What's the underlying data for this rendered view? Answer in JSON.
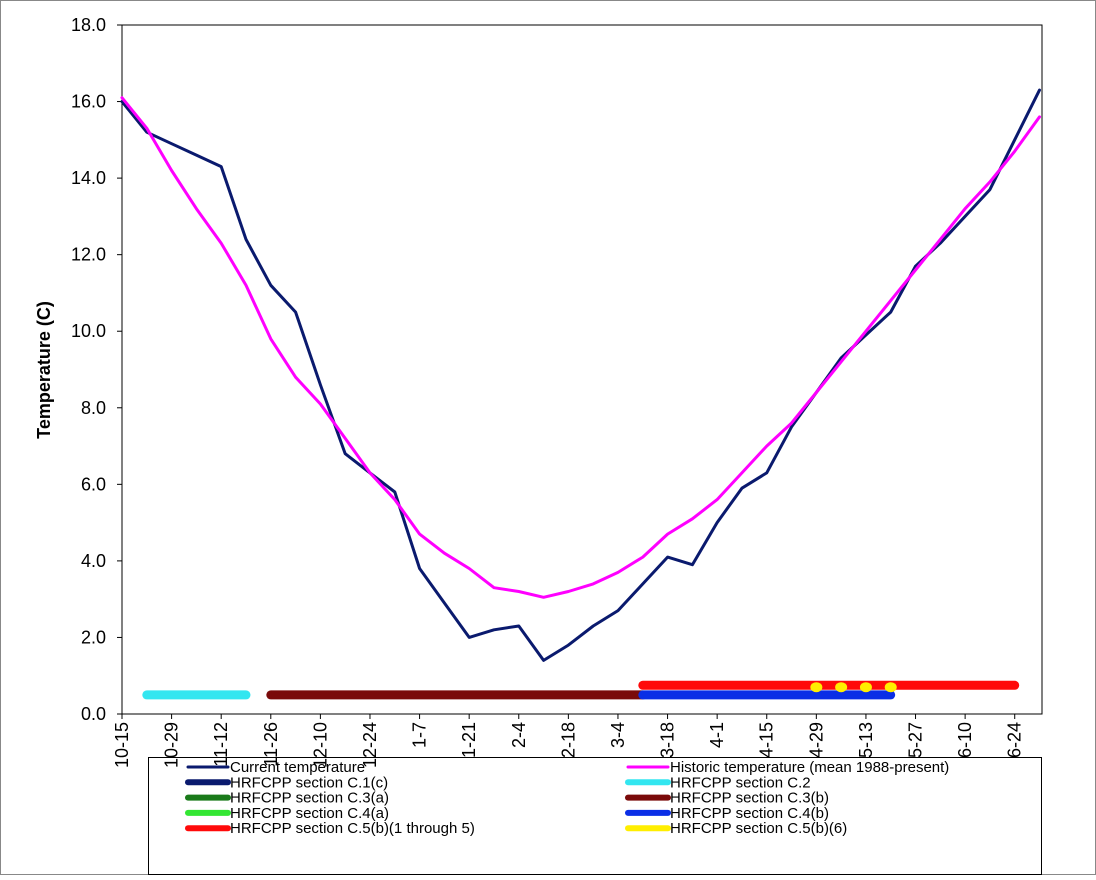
{
  "chart_data": {
    "type": "line",
    "y_label": "Temperature (C)",
    "categories": [
      "10-15",
      null,
      "10-29",
      null,
      "11-12",
      null,
      "11-26",
      null,
      "12-10",
      null,
      "12-24",
      null,
      "1-7",
      null,
      "1-21",
      null,
      "2-4",
      null,
      "2-18",
      null,
      "3-4",
      null,
      "3-18",
      null,
      "4-1",
      null,
      "4-15",
      null,
      "4-29",
      null,
      "5-13",
      null,
      "5-27",
      null,
      "6-10",
      null,
      "6-24",
      null
    ],
    "ylim": [
      0,
      18
    ],
    "yticks": [
      {
        "value": 0,
        "label": "0.0"
      },
      {
        "value": 2,
        "label": "2.0"
      },
      {
        "value": 4,
        "label": "4.0"
      },
      {
        "value": 6,
        "label": "6.0"
      },
      {
        "value": 8,
        "label": "8.0"
      },
      {
        "value": 10,
        "label": "10.0"
      },
      {
        "value": 12,
        "label": "12.0"
      },
      {
        "value": 14,
        "label": "14.0"
      },
      {
        "value": 16,
        "label": "16.0"
      },
      {
        "value": 18,
        "label": "18.0"
      }
    ],
    "series": [
      {
        "name": "Current temperature",
        "color": "#0a1a6e",
        "line_width": 3,
        "values": [
          16.0,
          15.2,
          14.9,
          14.6,
          14.3,
          12.4,
          11.2,
          10.5,
          8.6,
          6.8,
          6.3,
          5.8,
          3.8,
          2.9,
          2.0,
          2.2,
          2.3,
          1.4,
          1.8,
          2.3,
          2.7,
          3.4,
          4.1,
          3.9,
          5.0,
          5.9,
          6.3,
          7.5,
          8.4,
          9.3,
          9.9,
          10.5,
          11.7,
          12.3,
          13.0,
          13.7,
          15.0,
          16.3
        ]
      },
      {
        "name": "Historic temperature (mean 1988-present)",
        "color": "#ff00ff",
        "line_width": 3,
        "values": [
          16.1,
          15.3,
          14.2,
          13.2,
          12.3,
          11.2,
          9.8,
          8.8,
          8.1,
          7.2,
          6.3,
          5.6,
          4.7,
          4.2,
          3.8,
          3.3,
          3.2,
          3.05,
          3.2,
          3.4,
          3.7,
          4.1,
          4.7,
          5.1,
          5.6,
          6.3,
          7.0,
          7.6,
          8.4,
          9.2,
          10.0,
          10.8,
          11.6,
          12.4,
          13.2,
          13.9,
          14.7,
          15.6
        ]
      },
      {
        "name": "HRFCPP section C.1(c)",
        "color": "#0a1a6e",
        "line_width": 9,
        "values": [
          null,
          null,
          null,
          null,
          null,
          null,
          null,
          null,
          null,
          null,
          null,
          null,
          null,
          null,
          null,
          null,
          null,
          null,
          null,
          null,
          null,
          null,
          null,
          null,
          null,
          null,
          null,
          null,
          null,
          null,
          null,
          null,
          null,
          null,
          null,
          null,
          null,
          null
        ]
      },
      {
        "name": "HRFCPP section C.2",
        "color": "#33e6f0",
        "line_width": 9,
        "values": [
          null,
          0.5,
          0.5,
          0.5,
          0.5,
          0.5,
          null,
          null,
          null,
          null,
          null,
          null,
          null,
          null,
          null,
          null,
          null,
          null,
          null,
          null,
          null,
          null,
          null,
          null,
          null,
          null,
          null,
          null,
          null,
          null,
          null,
          null,
          null,
          null,
          null,
          null,
          null,
          null
        ]
      },
      {
        "name": "HRFCPP section C.3(a)",
        "color": "#1a7a1a",
        "line_width": 9,
        "values": [
          null,
          null,
          null,
          null,
          null,
          null,
          null,
          null,
          null,
          null,
          null,
          null,
          null,
          null,
          null,
          null,
          null,
          null,
          null,
          null,
          null,
          null,
          null,
          null,
          null,
          null,
          null,
          null,
          null,
          null,
          null,
          null,
          null,
          null,
          null,
          null,
          null,
          null
        ]
      },
      {
        "name": "HRFCPP section C.3(b)",
        "color": "#7a0a0a",
        "line_width": 9,
        "values": [
          null,
          null,
          null,
          null,
          null,
          null,
          0.5,
          0.5,
          0.5,
          0.5,
          0.5,
          0.5,
          0.5,
          0.5,
          0.5,
          0.5,
          0.5,
          0.5,
          0.5,
          0.5,
          0.5,
          0.5,
          null,
          null,
          null,
          null,
          null,
          null,
          null,
          null,
          null,
          null,
          null,
          null,
          null,
          null,
          null,
          null
        ]
      },
      {
        "name": "HRFCPP section C.4(a)",
        "color": "#33e633",
        "line_width": 9,
        "values": [
          null,
          null,
          null,
          null,
          null,
          null,
          null,
          null,
          null,
          null,
          null,
          null,
          null,
          null,
          null,
          null,
          null,
          null,
          null,
          null,
          null,
          null,
          null,
          null,
          null,
          null,
          null,
          null,
          null,
          null,
          null,
          null,
          null,
          null,
          null,
          null,
          null,
          null
        ]
      },
      {
        "name": "HRFCPP section C.4(b)",
        "color": "#0a2ee6",
        "line_width": 9,
        "values": [
          null,
          null,
          null,
          null,
          null,
          null,
          null,
          null,
          null,
          null,
          null,
          null,
          null,
          null,
          null,
          null,
          null,
          null,
          null,
          null,
          null,
          0.5,
          0.5,
          0.5,
          0.5,
          0.5,
          0.5,
          0.5,
          0.5,
          0.5,
          0.5,
          0.5,
          null,
          null,
          null,
          null,
          null,
          null
        ]
      },
      {
        "name": "HRFCPP section C.5(b)(1 through 5)",
        "color": "#ff0a0a",
        "line_width": 9,
        "values": [
          null,
          null,
          null,
          null,
          null,
          null,
          null,
          null,
          null,
          null,
          null,
          null,
          null,
          null,
          null,
          null,
          null,
          null,
          null,
          null,
          null,
          0.75,
          0.75,
          0.75,
          0.75,
          0.75,
          0.75,
          0.75,
          0.75,
          0.75,
          0.75,
          0.75,
          0.75,
          0.75,
          0.75,
          0.75,
          0.75,
          null
        ]
      },
      {
        "name": "HRFCPP section C.5(b)(6)",
        "color": "#ffee00",
        "line_width": 9,
        "marker": "dot",
        "values": [
          null,
          null,
          null,
          null,
          null,
          null,
          null,
          null,
          null,
          null,
          null,
          null,
          null,
          null,
          null,
          null,
          null,
          null,
          null,
          null,
          null,
          null,
          null,
          null,
          null,
          null,
          null,
          null,
          0.7,
          0.7,
          0.7,
          0.7,
          null,
          null,
          null,
          null,
          null,
          null
        ]
      }
    ]
  }
}
